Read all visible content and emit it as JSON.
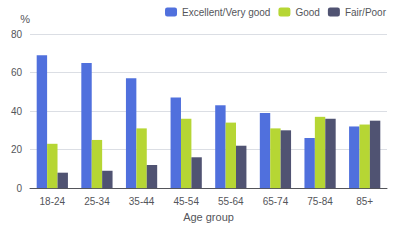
{
  "chart_data": {
    "type": "bar",
    "categories": [
      "18-24",
      "25-34",
      "35-44",
      "45-54",
      "55-64",
      "65-74",
      "75-84",
      "85+"
    ],
    "series": [
      {
        "name": "Excellent/Very good",
        "values": [
          69,
          65,
          57,
          47,
          43,
          39,
          26,
          32
        ]
      },
      {
        "name": "Good",
        "values": [
          23,
          25,
          31,
          36,
          34,
          31,
          37,
          33
        ]
      },
      {
        "name": "Fair/Poor",
        "values": [
          8,
          9,
          12,
          16,
          22,
          30,
          36,
          35
        ]
      }
    ],
    "xlabel": "Age group",
    "ylabel": "%",
    "ylim": [
      0,
      80
    ],
    "yticks": [
      0,
      20,
      40,
      60,
      80
    ],
    "grid": true,
    "legend": "upper right"
  }
}
